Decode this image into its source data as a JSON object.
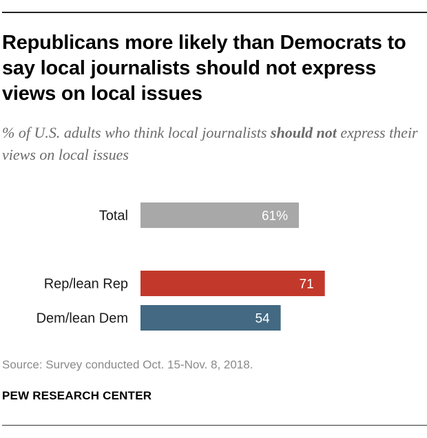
{
  "header": {
    "title": "Republicans more likely than Democrats to say local journalists should not express views on local issues",
    "subtitle_before": "% of U.S. adults who think local journalists ",
    "subtitle_emphasis": "should not",
    "subtitle_after": " express their views on local issues"
  },
  "chart_data": {
    "type": "bar",
    "orientation": "horizontal",
    "title": "Republicans more likely than Democrats to say local journalists should not express views on local issues",
    "xlabel": "",
    "ylabel": "",
    "xlim": [
      0,
      100
    ],
    "grid": false,
    "categories": [
      "Total",
      "Rep/lean Rep",
      "Dem/lean Dem"
    ],
    "values": [
      61,
      71,
      54
    ],
    "value_labels": [
      "61%",
      "71",
      "54"
    ],
    "colors": [
      "#a8a8a8",
      "#c2392b",
      "#436983"
    ]
  },
  "footer": {
    "source": "Source: Survey conducted Oct. 15-Nov. 8, 2018.",
    "organization": "PEW RESEARCH CENTER"
  }
}
